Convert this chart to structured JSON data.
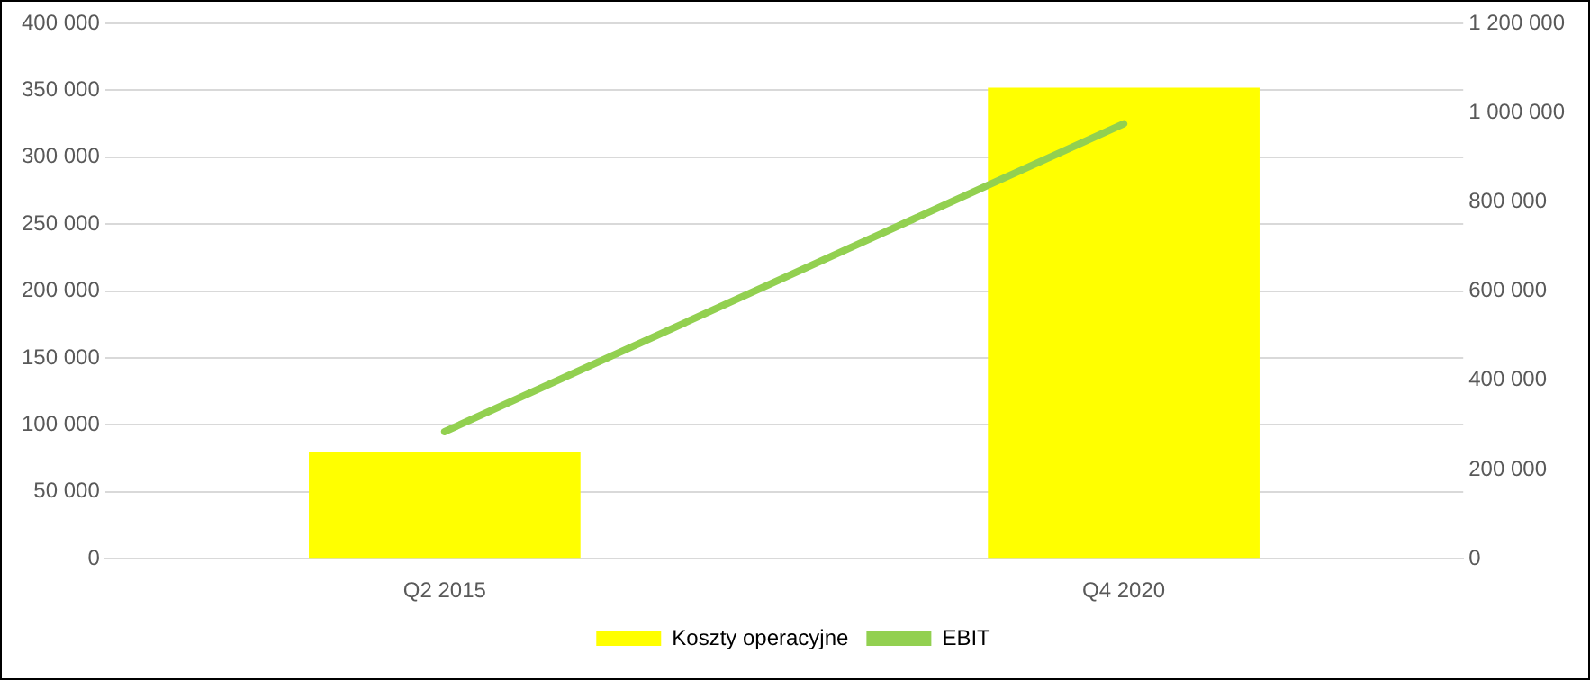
{
  "chart_data": {
    "type": "bar",
    "categories": [
      "Q2 2015",
      "Q4 2020"
    ],
    "series": [
      {
        "name": "Koszty operacyjne",
        "color": "#ffff00",
        "values": [
          80000,
          352000
        ]
      },
      {
        "name": "EBIT",
        "type": "line",
        "axis": "y2",
        "color": "#92d050",
        "values": [
          285000,
          975000
        ]
      }
    ],
    "ylim": [
      0,
      400000
    ],
    "yticks": [
      0,
      {
        "value": 50000,
        "label": "50 000"
      },
      {
        "value": 100000,
        "label": "100 000"
      },
      {
        "value": 150000,
        "label": "150 000"
      },
      {
        "value": 200000,
        "label": "200 000"
      },
      {
        "value": 250000,
        "label": "250 000"
      },
      {
        "value": 300000,
        "label": "300 000"
      },
      {
        "value": 350000,
        "label": "350 000"
      },
      {
        "value": 400000,
        "label": "400 000"
      }
    ],
    "y2lim": [
      0,
      1200000
    ],
    "y2ticks": [
      0,
      {
        "value": 200000,
        "label": "200 000"
      },
      {
        "value": 400000,
        "label": "400 000"
      },
      {
        "value": 600000,
        "label": "600 000"
      },
      {
        "value": 800000,
        "label": "800 000"
      },
      {
        "value": 1000000,
        "label": "1 000 000"
      },
      {
        "value": 1200000,
        "label": "1 200 000"
      }
    ],
    "grid": "y",
    "legend": "bottom",
    "marker": "none"
  }
}
